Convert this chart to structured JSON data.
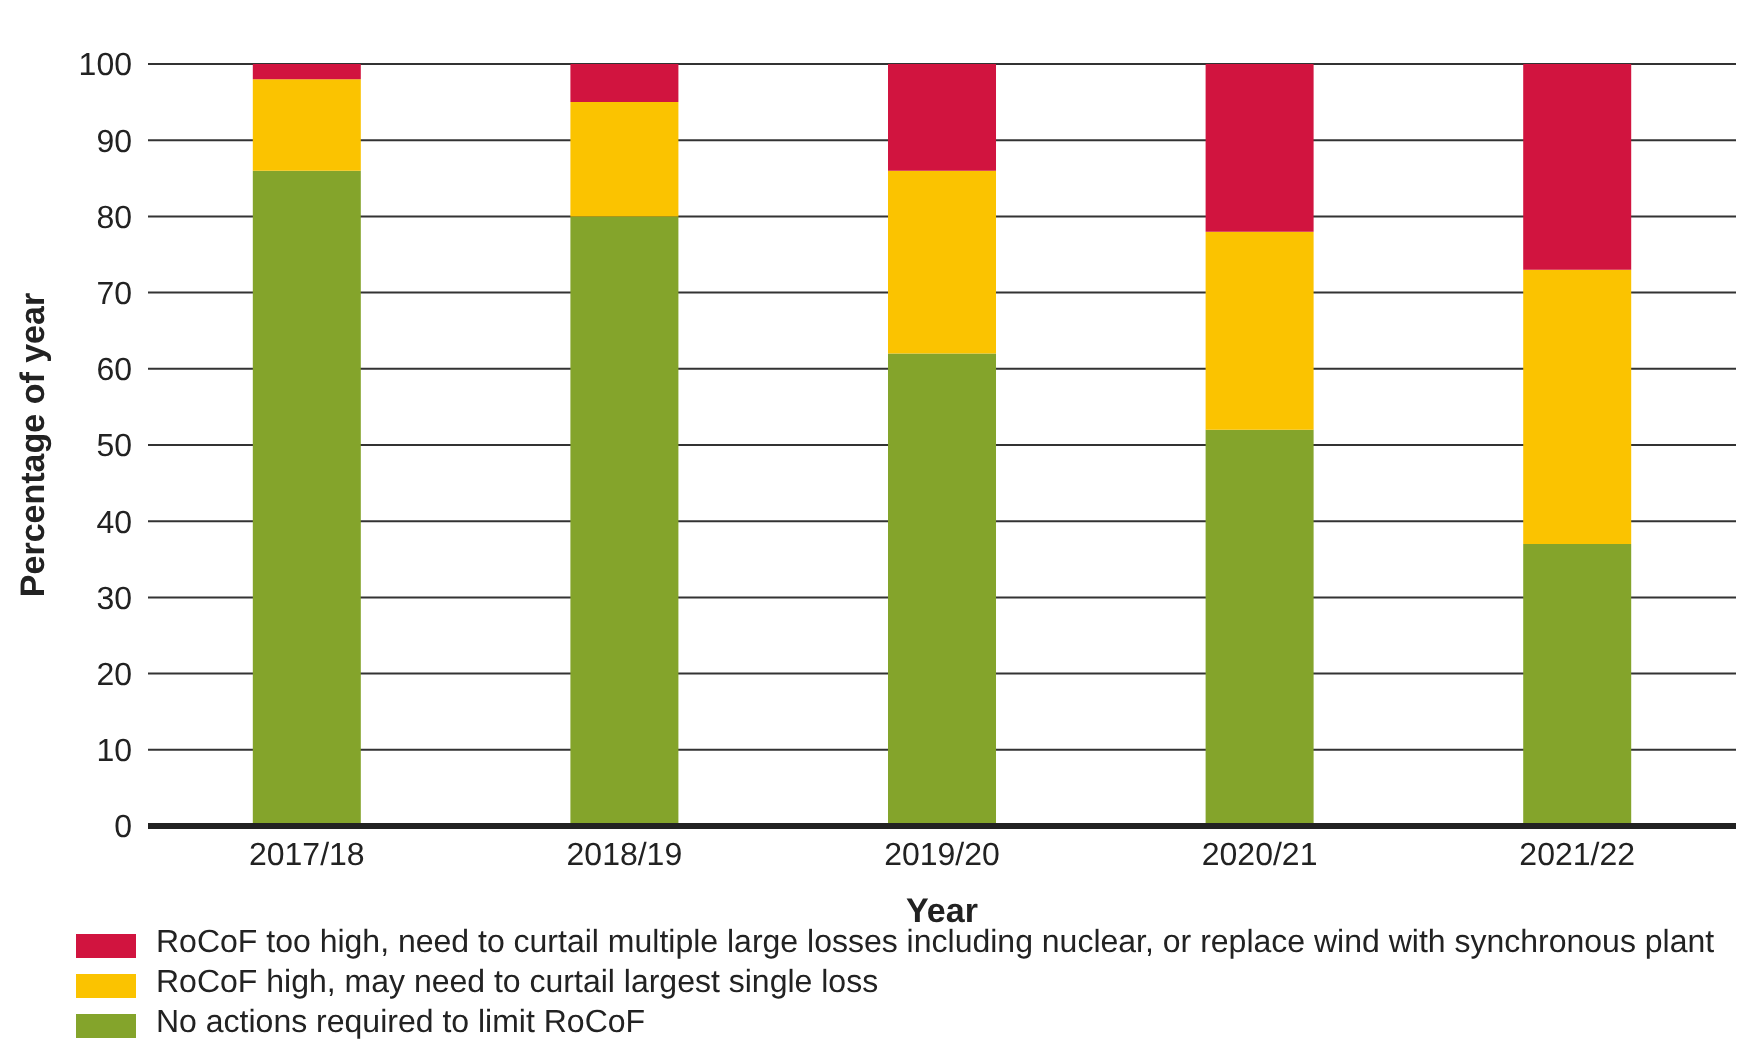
{
  "chart_data": {
    "type": "bar",
    "stacked": true,
    "xlabel": "Year",
    "ylabel": "Percentage of year",
    "categories": [
      "2017/18",
      "2018/19",
      "2019/20",
      "2020/21",
      "2021/22"
    ],
    "series": [
      {
        "name": "No actions required to limit RoCoF",
        "color": "#84a42b",
        "values": [
          86,
          80,
          62,
          52,
          37
        ]
      },
      {
        "name": "RoCoF high, may need to curtail largest single loss",
        "color": "#fbc300",
        "values": [
          12,
          15,
          24,
          26,
          36
        ]
      },
      {
        "name": "RoCoF too high, need to curtail multiple large losses including nuclear, or replace wind with synchronous plant",
        "color": "#d1143f",
        "values": [
          2,
          5,
          14,
          22,
          27
        ]
      }
    ],
    "ylim": [
      0,
      100
    ],
    "yticks": [
      0,
      10,
      20,
      30,
      40,
      50,
      60,
      70,
      80,
      90,
      100
    ],
    "grid": "y",
    "legend": "bottom"
  }
}
